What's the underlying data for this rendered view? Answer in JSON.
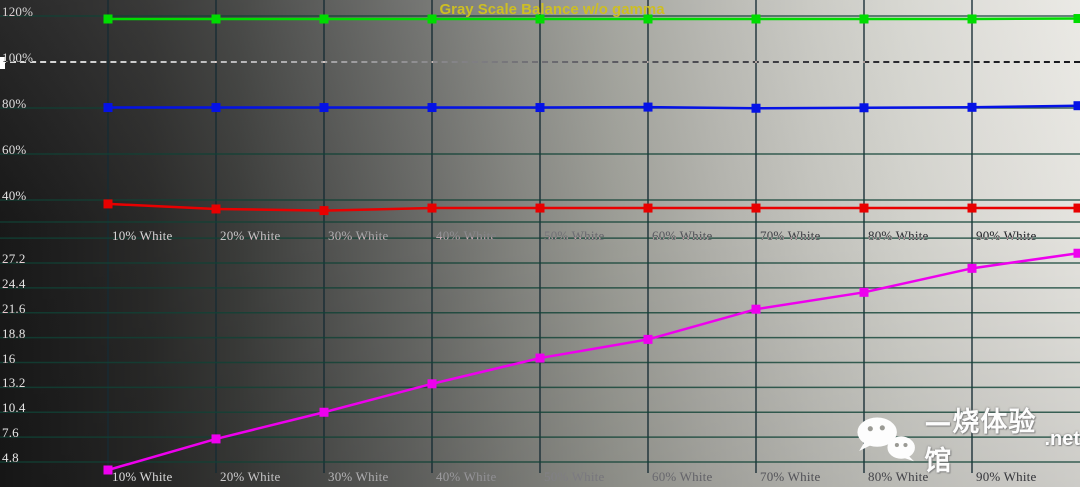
{
  "title": "Gray Scale Balance w/o gamma",
  "colors": {
    "title": "#cdbe23",
    "grid_horizontal": "rgba(16,66,54,0.8)",
    "grid_vertical": "rgba(22,44,52,0.85)",
    "reference_line": "#ffffff",
    "green_series": "#00dc00",
    "blue_series": "#0512e6",
    "red_series": "#e80000",
    "luminance_series": "#ee00ee"
  },
  "watermark": {
    "icon": "wechat-icon",
    "text_cn": "—烧体验馆",
    "text_suffix": ".net"
  },
  "chart_data": [
    {
      "type": "line",
      "title": "Gray Scale Balance w/o gamma",
      "xlabel": "",
      "ylabel": "",
      "x_tick_labels": [
        "10% White",
        "20% White",
        "30% White",
        "40% White",
        "50% White",
        "60% White",
        "70% White",
        "80% White",
        "90% White"
      ],
      "x_percent": [
        10,
        20,
        30,
        40,
        50,
        60,
        70,
        80,
        90,
        100
      ],
      "y_tick_labels": [
        "120%",
        "100%",
        "80%",
        "60%",
        "40%"
      ],
      "y_ticks": [
        120,
        100,
        80,
        60,
        40
      ],
      "ylim": [
        30,
        127
      ],
      "reference_value": 100,
      "grid": true,
      "legend": "none",
      "marker": "square",
      "series": [
        {
          "name": "green",
          "color": "#00dc00",
          "values": [
            118.7,
            118.7,
            118.7,
            118.7,
            118.7,
            118.7,
            118.7,
            118.7,
            118.7,
            118.9
          ]
        },
        {
          "name": "blue",
          "color": "#0512e6",
          "values": [
            80.2,
            80.2,
            80.2,
            80.2,
            80.2,
            80.4,
            79.9,
            80.1,
            80.3,
            81.0
          ]
        },
        {
          "name": "red",
          "color": "#e80000",
          "values": [
            38.3,
            36.1,
            35.4,
            36.5,
            36.5,
            36.5,
            36.5,
            36.5,
            36.5,
            36.5
          ]
        }
      ]
    },
    {
      "type": "line",
      "title": "",
      "xlabel": "",
      "ylabel": "",
      "x_tick_labels": [
        "10% White",
        "20% White",
        "30% White",
        "40% White",
        "50% White",
        "60% White",
        "70% White",
        "80% White",
        "90% White"
      ],
      "x_percent": [
        10,
        20,
        30,
        40,
        50,
        60,
        70,
        80,
        90,
        100
      ],
      "y_tick_labels": [
        "27.2",
        "24.4",
        "21.6",
        "18.8",
        "16",
        "13.2",
        "10.4",
        "7.6",
        "4.8"
      ],
      "y_ticks": [
        27.2,
        24.4,
        21.6,
        18.8,
        16,
        13.2,
        10.4,
        7.6,
        4.8
      ],
      "ylim": [
        2.0,
        30
      ],
      "grid": true,
      "legend": "none",
      "marker": "square",
      "series": [
        {
          "name": "luminance",
          "color": "#ee00ee",
          "values": [
            3.9,
            7.4,
            10.4,
            13.6,
            16.5,
            18.6,
            22.0,
            23.9,
            26.6,
            28.3
          ]
        }
      ]
    }
  ]
}
